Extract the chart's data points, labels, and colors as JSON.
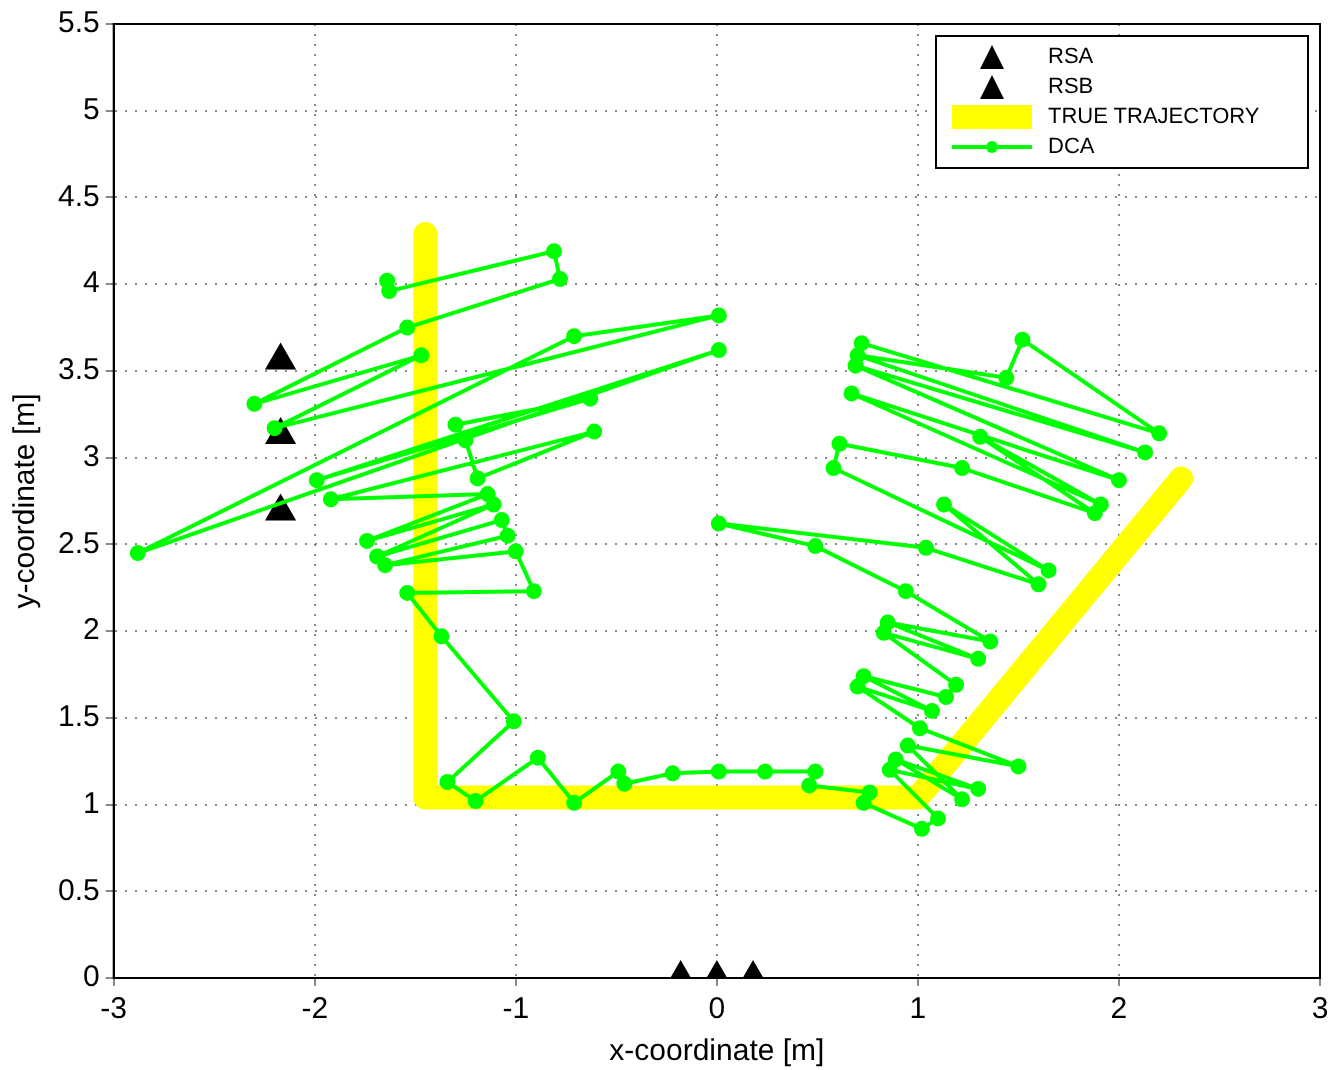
{
  "chart_data": {
    "type": "line",
    "xlabel": "x-coordinate [m]",
    "ylabel": "y-coordinate [m]",
    "xlim": [
      -3,
      3
    ],
    "xticks": [
      -3,
      -2,
      -1,
      0,
      1,
      2,
      3
    ],
    "ylim": [
      0,
      5.5
    ],
    "yticks": [
      0,
      0.5,
      1,
      1.5,
      2,
      2.5,
      3,
      3.5,
      4,
      4.5,
      5,
      5.5
    ],
    "grid": true,
    "legend": "top right",
    "series": [
      {
        "name": "RSA",
        "type": "scatter",
        "color": "#000000",
        "marker": "triangle",
        "x": [
          -0.18,
          0,
          0.18
        ],
        "values": [
          0,
          0,
          0
        ]
      },
      {
        "name": "RSB",
        "type": "scatter",
        "color": "#000000",
        "marker": "triangle",
        "x": [
          -2.17,
          -2.17,
          -2.17
        ],
        "values": [
          3.56,
          3.13,
          2.69
        ]
      },
      {
        "name": "TRUE TRAJECTORY",
        "color": "#ffff00",
        "marker": "none",
        "x": [
          -1.45,
          -1.45,
          1.0,
          2.31
        ],
        "values": [
          4.29,
          1.04,
          1.04,
          2.88
        ]
      },
      {
        "name": "DCA",
        "color": "#00ff00",
        "marker": "circle",
        "x": [
          -1.64,
          -1.63,
          -0.81,
          -0.78,
          -1.54,
          -2.3,
          -1.47,
          -2.2,
          0.01,
          -0.71,
          -2.88,
          0.01,
          -1.99,
          -0.63,
          -1.3,
          -1.25,
          -1.19,
          -0.61,
          -1.92,
          -1.14,
          -1.74,
          -1.11,
          -1.69,
          -1.07,
          -1.04,
          -1.65,
          -1.0,
          -0.91,
          -1.54,
          -1.37,
          -1.01,
          -1.34,
          -1.2,
          -0.89,
          -0.71,
          -0.49,
          -0.46,
          -0.22,
          0.01,
          0.24,
          0.49,
          0.46,
          0.76,
          0.73,
          1.02,
          1.1,
          0.86,
          1.3,
          0.89,
          1.22,
          0.95,
          1.5,
          1.01,
          0.7,
          1.07,
          0.73,
          1.14,
          1.19,
          0.83,
          1.3,
          0.85,
          1.36,
          0.94,
          0.49,
          0.01,
          1.04,
          1.6,
          1.13,
          1.65,
          0.58,
          0.61,
          1.22,
          1.88,
          1.31,
          1.91,
          0.67,
          2.0,
          0.69,
          2.13,
          0.7,
          1.44,
          1.52,
          2.2,
          0.72
        ],
        "values": [
          4.02,
          3.96,
          4.19,
          4.03,
          3.75,
          3.31,
          3.59,
          3.17,
          3.82,
          3.7,
          2.45,
          3.62,
          2.87,
          3.34,
          3.19,
          3.1,
          2.88,
          3.15,
          2.76,
          2.79,
          2.52,
          2.73,
          2.43,
          2.64,
          2.55,
          2.38,
          2.46,
          2.23,
          2.22,
          1.97,
          1.48,
          1.13,
          1.02,
          1.27,
          1.01,
          1.19,
          1.12,
          1.18,
          1.19,
          1.19,
          1.19,
          1.11,
          1.07,
          1.01,
          0.86,
          0.92,
          1.2,
          1.09,
          1.26,
          1.03,
          1.34,
          1.22,
          1.44,
          1.68,
          1.54,
          1.74,
          1.62,
          1.69,
          1.99,
          1.84,
          2.05,
          1.94,
          2.23,
          2.49,
          2.62,
          2.48,
          2.27,
          2.73,
          2.35,
          2.94,
          3.08,
          2.94,
          2.68,
          3.12,
          2.73,
          3.37,
          2.87,
          3.53,
          3.03,
          3.59,
          3.46,
          3.68,
          3.14,
          3.66
        ]
      }
    ]
  }
}
